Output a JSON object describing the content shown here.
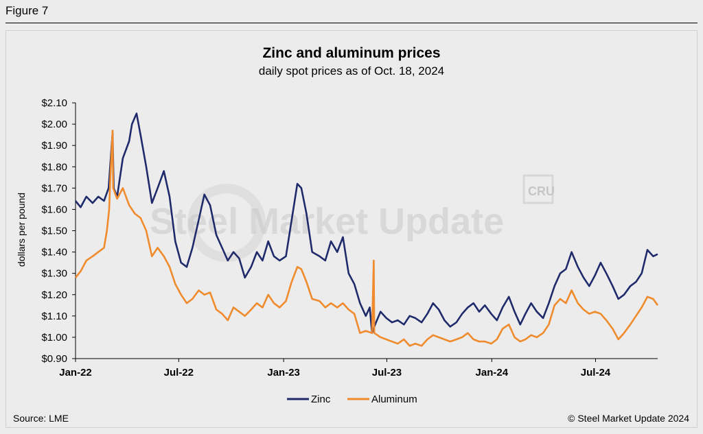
{
  "figure_label": "Figure 7",
  "watermark": {
    "brand": "Steel Market Update",
    "logo": "CRU"
  },
  "chart_data": {
    "type": "line",
    "title": "Zinc and aluminum prices",
    "subtitle": "daily spot prices as of Oct. 18, 2024",
    "ylabel": "dollars per pound",
    "ylim": [
      0.9,
      2.1
    ],
    "yticks": [
      0.9,
      1.0,
      1.1,
      1.2,
      1.3,
      1.4,
      1.5,
      1.6,
      1.7,
      1.8,
      1.9,
      2.0,
      2.1
    ],
    "ytick_labels": [
      "$0.90",
      "$1.00",
      "$1.10",
      "$1.20",
      "$1.30",
      "$1.40",
      "$1.50",
      "$1.60",
      "$1.70",
      "$1.80",
      "$1.90",
      "$2.00",
      "$2.10"
    ],
    "xlim": [
      "2022-01-01",
      "2024-10-18"
    ],
    "xticks": [
      "2022-01-01",
      "2022-07-01",
      "2023-01-01",
      "2023-07-01",
      "2024-01-01",
      "2024-07-01"
    ],
    "xtick_labels": [
      "Jan-22",
      "Jul-22",
      "Jan-23",
      "Jul-23",
      "Jan-24",
      "Jul-24"
    ],
    "legend_position": "bottom",
    "grid": false,
    "series": [
      {
        "name": "Zinc",
        "color": "#1f2a6b",
        "points": [
          [
            "2022-01-01",
            1.64
          ],
          [
            "2022-01-10",
            1.61
          ],
          [
            "2022-01-20",
            1.66
          ],
          [
            "2022-01-31",
            1.63
          ],
          [
            "2022-02-10",
            1.66
          ],
          [
            "2022-02-20",
            1.64
          ],
          [
            "2022-02-28",
            1.7
          ],
          [
            "2022-03-04",
            1.85
          ],
          [
            "2022-03-07",
            1.96
          ],
          [
            "2022-03-09",
            1.7
          ],
          [
            "2022-03-15",
            1.66
          ],
          [
            "2022-03-25",
            1.84
          ],
          [
            "2022-04-05",
            1.92
          ],
          [
            "2022-04-10",
            2.0
          ],
          [
            "2022-04-18",
            2.05
          ],
          [
            "2022-04-25",
            1.95
          ],
          [
            "2022-05-05",
            1.8
          ],
          [
            "2022-05-15",
            1.63
          ],
          [
            "2022-05-25",
            1.7
          ],
          [
            "2022-06-05",
            1.78
          ],
          [
            "2022-06-15",
            1.66
          ],
          [
            "2022-06-25",
            1.45
          ],
          [
            "2022-07-05",
            1.35
          ],
          [
            "2022-07-15",
            1.33
          ],
          [
            "2022-07-25",
            1.42
          ],
          [
            "2022-08-05",
            1.55
          ],
          [
            "2022-08-15",
            1.67
          ],
          [
            "2022-08-25",
            1.62
          ],
          [
            "2022-09-05",
            1.48
          ],
          [
            "2022-09-15",
            1.42
          ],
          [
            "2022-09-25",
            1.36
          ],
          [
            "2022-10-05",
            1.4
          ],
          [
            "2022-10-15",
            1.37
          ],
          [
            "2022-10-25",
            1.28
          ],
          [
            "2022-11-05",
            1.33
          ],
          [
            "2022-11-15",
            1.4
          ],
          [
            "2022-11-25",
            1.36
          ],
          [
            "2022-12-05",
            1.45
          ],
          [
            "2022-12-15",
            1.38
          ],
          [
            "2022-12-25",
            1.36
          ],
          [
            "2023-01-05",
            1.38
          ],
          [
            "2023-01-15",
            1.55
          ],
          [
            "2023-01-25",
            1.72
          ],
          [
            "2023-02-01",
            1.7
          ],
          [
            "2023-02-10",
            1.58
          ],
          [
            "2023-02-20",
            1.4
          ],
          [
            "2023-03-05",
            1.38
          ],
          [
            "2023-03-15",
            1.36
          ],
          [
            "2023-03-25",
            1.45
          ],
          [
            "2023-04-05",
            1.4
          ],
          [
            "2023-04-15",
            1.47
          ],
          [
            "2023-04-25",
            1.3
          ],
          [
            "2023-05-05",
            1.25
          ],
          [
            "2023-05-15",
            1.16
          ],
          [
            "2023-05-25",
            1.1
          ],
          [
            "2023-06-01",
            1.14
          ],
          [
            "2023-06-05",
            1.02
          ],
          [
            "2023-06-12",
            1.07
          ],
          [
            "2023-06-20",
            1.12
          ],
          [
            "2023-06-30",
            1.09
          ],
          [
            "2023-07-10",
            1.07
          ],
          [
            "2023-07-20",
            1.08
          ],
          [
            "2023-07-31",
            1.06
          ],
          [
            "2023-08-10",
            1.1
          ],
          [
            "2023-08-20",
            1.09
          ],
          [
            "2023-08-31",
            1.07
          ],
          [
            "2023-09-10",
            1.11
          ],
          [
            "2023-09-20",
            1.16
          ],
          [
            "2023-09-30",
            1.13
          ],
          [
            "2023-10-10",
            1.08
          ],
          [
            "2023-10-20",
            1.05
          ],
          [
            "2023-10-31",
            1.07
          ],
          [
            "2023-11-10",
            1.11
          ],
          [
            "2023-11-20",
            1.14
          ],
          [
            "2023-11-30",
            1.16
          ],
          [
            "2023-12-10",
            1.12
          ],
          [
            "2023-12-20",
            1.15
          ],
          [
            "2023-12-31",
            1.11
          ],
          [
            "2024-01-10",
            1.08
          ],
          [
            "2024-01-20",
            1.14
          ],
          [
            "2024-01-31",
            1.19
          ],
          [
            "2024-02-10",
            1.12
          ],
          [
            "2024-02-20",
            1.06
          ],
          [
            "2024-02-29",
            1.11
          ],
          [
            "2024-03-10",
            1.16
          ],
          [
            "2024-03-20",
            1.12
          ],
          [
            "2024-03-31",
            1.09
          ],
          [
            "2024-04-10",
            1.16
          ],
          [
            "2024-04-20",
            1.24
          ],
          [
            "2024-04-30",
            1.3
          ],
          [
            "2024-05-10",
            1.32
          ],
          [
            "2024-05-20",
            1.4
          ],
          [
            "2024-05-31",
            1.33
          ],
          [
            "2024-06-10",
            1.28
          ],
          [
            "2024-06-20",
            1.24
          ],
          [
            "2024-06-30",
            1.29
          ],
          [
            "2024-07-10",
            1.35
          ],
          [
            "2024-07-20",
            1.3
          ],
          [
            "2024-07-31",
            1.24
          ],
          [
            "2024-08-10",
            1.18
          ],
          [
            "2024-08-20",
            1.2
          ],
          [
            "2024-08-31",
            1.24
          ],
          [
            "2024-09-10",
            1.26
          ],
          [
            "2024-09-20",
            1.3
          ],
          [
            "2024-09-30",
            1.41
          ],
          [
            "2024-10-10",
            1.38
          ],
          [
            "2024-10-18",
            1.39
          ]
        ]
      },
      {
        "name": "Aluminum",
        "color": "#ef8b2c",
        "points": [
          [
            "2022-01-01",
            1.28
          ],
          [
            "2022-01-10",
            1.31
          ],
          [
            "2022-01-20",
            1.36
          ],
          [
            "2022-01-31",
            1.38
          ],
          [
            "2022-02-10",
            1.4
          ],
          [
            "2022-02-20",
            1.42
          ],
          [
            "2022-02-25",
            1.5
          ],
          [
            "2022-03-01",
            1.6
          ],
          [
            "2022-03-03",
            1.75
          ],
          [
            "2022-03-07",
            1.97
          ],
          [
            "2022-03-08",
            1.7
          ],
          [
            "2022-03-15",
            1.65
          ],
          [
            "2022-03-25",
            1.7
          ],
          [
            "2022-04-05",
            1.62
          ],
          [
            "2022-04-15",
            1.58
          ],
          [
            "2022-04-25",
            1.56
          ],
          [
            "2022-05-05",
            1.5
          ],
          [
            "2022-05-15",
            1.38
          ],
          [
            "2022-05-25",
            1.42
          ],
          [
            "2022-06-05",
            1.38
          ],
          [
            "2022-06-15",
            1.33
          ],
          [
            "2022-06-25",
            1.25
          ],
          [
            "2022-07-05",
            1.2
          ],
          [
            "2022-07-15",
            1.16
          ],
          [
            "2022-07-25",
            1.18
          ],
          [
            "2022-08-05",
            1.22
          ],
          [
            "2022-08-15",
            1.2
          ],
          [
            "2022-08-25",
            1.21
          ],
          [
            "2022-09-05",
            1.13
          ],
          [
            "2022-09-15",
            1.11
          ],
          [
            "2022-09-25",
            1.08
          ],
          [
            "2022-10-05",
            1.14
          ],
          [
            "2022-10-15",
            1.12
          ],
          [
            "2022-10-25",
            1.1
          ],
          [
            "2022-11-05",
            1.13
          ],
          [
            "2022-11-15",
            1.16
          ],
          [
            "2022-11-25",
            1.14
          ],
          [
            "2022-12-05",
            1.2
          ],
          [
            "2022-12-15",
            1.16
          ],
          [
            "2022-12-25",
            1.14
          ],
          [
            "2023-01-05",
            1.17
          ],
          [
            "2023-01-15",
            1.26
          ],
          [
            "2023-01-25",
            1.33
          ],
          [
            "2023-02-01",
            1.32
          ],
          [
            "2023-02-10",
            1.26
          ],
          [
            "2023-02-20",
            1.18
          ],
          [
            "2023-03-05",
            1.17
          ],
          [
            "2023-03-15",
            1.14
          ],
          [
            "2023-03-25",
            1.16
          ],
          [
            "2023-04-05",
            1.14
          ],
          [
            "2023-04-15",
            1.16
          ],
          [
            "2023-04-25",
            1.13
          ],
          [
            "2023-05-05",
            1.11
          ],
          [
            "2023-05-15",
            1.02
          ],
          [
            "2023-05-25",
            1.03
          ],
          [
            "2023-06-05",
            1.02
          ],
          [
            "2023-06-08",
            1.36
          ],
          [
            "2023-06-09",
            1.02
          ],
          [
            "2023-06-20",
            1.0
          ],
          [
            "2023-06-30",
            0.99
          ],
          [
            "2023-07-10",
            0.98
          ],
          [
            "2023-07-20",
            0.97
          ],
          [
            "2023-07-31",
            0.99
          ],
          [
            "2023-08-10",
            0.96
          ],
          [
            "2023-08-20",
            0.97
          ],
          [
            "2023-08-31",
            0.96
          ],
          [
            "2023-09-10",
            0.99
          ],
          [
            "2023-09-20",
            1.01
          ],
          [
            "2023-09-30",
            1.0
          ],
          [
            "2023-10-10",
            0.99
          ],
          [
            "2023-10-20",
            0.98
          ],
          [
            "2023-10-31",
            0.99
          ],
          [
            "2023-11-10",
            1.0
          ],
          [
            "2023-11-20",
            1.02
          ],
          [
            "2023-11-30",
            0.99
          ],
          [
            "2023-12-10",
            0.98
          ],
          [
            "2023-12-20",
            0.98
          ],
          [
            "2023-12-31",
            0.97
          ],
          [
            "2024-01-10",
            0.99
          ],
          [
            "2024-01-20",
            1.04
          ],
          [
            "2024-01-31",
            1.06
          ],
          [
            "2024-02-10",
            1.0
          ],
          [
            "2024-02-20",
            0.98
          ],
          [
            "2024-02-29",
            0.99
          ],
          [
            "2024-03-10",
            1.01
          ],
          [
            "2024-03-20",
            1.0
          ],
          [
            "2024-03-31",
            1.02
          ],
          [
            "2024-04-10",
            1.06
          ],
          [
            "2024-04-20",
            1.15
          ],
          [
            "2024-04-30",
            1.18
          ],
          [
            "2024-05-10",
            1.16
          ],
          [
            "2024-05-20",
            1.22
          ],
          [
            "2024-05-31",
            1.16
          ],
          [
            "2024-06-10",
            1.13
          ],
          [
            "2024-06-20",
            1.11
          ],
          [
            "2024-06-30",
            1.12
          ],
          [
            "2024-07-10",
            1.11
          ],
          [
            "2024-07-20",
            1.08
          ],
          [
            "2024-07-31",
            1.04
          ],
          [
            "2024-08-10",
            0.99
          ],
          [
            "2024-08-20",
            1.02
          ],
          [
            "2024-08-31",
            1.06
          ],
          [
            "2024-09-10",
            1.1
          ],
          [
            "2024-09-20",
            1.14
          ],
          [
            "2024-09-30",
            1.19
          ],
          [
            "2024-10-10",
            1.18
          ],
          [
            "2024-10-18",
            1.15
          ]
        ]
      }
    ]
  },
  "footer": {
    "source": "Source: LME",
    "copyright": "© Steel Market Update 2024"
  }
}
